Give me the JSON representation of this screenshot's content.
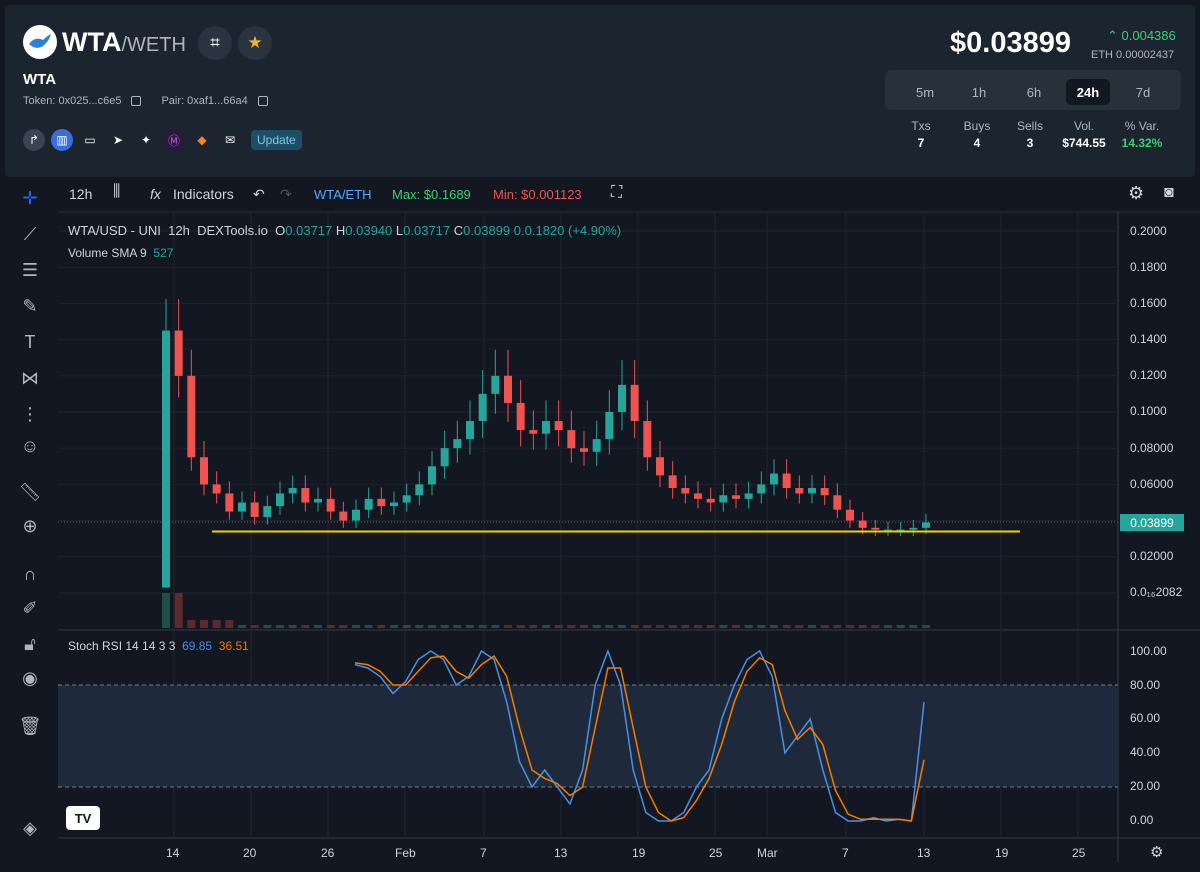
{
  "header": {
    "base": "WTA",
    "quote": "/WETH",
    "token_name": "WTA",
    "token_label": "Token: 0x025...c6e5",
    "pair_label": "Pair: 0xaf1...66a4",
    "update_label": "Update",
    "price": "$0.03899",
    "change": "0.004386",
    "eth_price": "ETH 0.00002437",
    "timeframes": [
      "5m",
      "1h",
      "6h",
      "24h",
      "7d"
    ],
    "active_timeframe": "24h",
    "stats": [
      {
        "label": "Txs",
        "value": "7"
      },
      {
        "label": "Buys",
        "value": "4"
      },
      {
        "label": "Sells",
        "value": "3"
      },
      {
        "label": "Vol.",
        "value": "$744.55"
      },
      {
        "label": "% Var.",
        "value": "14.32%"
      }
    ]
  },
  "toolbar": {
    "interval": "12h",
    "indicators": "Indicators",
    "pair": "WTA/ETH",
    "max": "Max: $0.1689",
    "min": "Min: $0.001123"
  },
  "legend": {
    "symbol": "WTA/USD - UNI",
    "interval": "12h",
    "source": "DEXTools.io",
    "o_label": "O",
    "o": "0.03717",
    "h_label": "H",
    "h": "0.03940",
    "l_label": "L",
    "l": "0.03717",
    "c_label": "C",
    "c": "0.03899",
    "change": "0.0.1820 (+4.90%)",
    "volume_label": "Volume SMA 9",
    "volume": "527",
    "stoch_label": "Stoch RSI 14 14 3 3",
    "stoch_k": "69.85",
    "stoch_d": "36.51"
  },
  "chart_data": {
    "type": "candlestick",
    "price_axis": [
      "0.2000",
      "0.1800",
      "0.1600",
      "0.1400",
      "0.1200",
      "0.1000",
      "0.08000",
      "0.06000",
      "0.04000",
      "0.02000",
      "0.0₁₆2082"
    ],
    "price_ylim": [
      0,
      0.2
    ],
    "current_price": "0.03899",
    "support_line": 0.034,
    "rsi_axis": [
      "100.00",
      "80.00",
      "60.00",
      "40.00",
      "20.00",
      "0.00"
    ],
    "x_labels": [
      "14",
      "20",
      "26",
      "Feb",
      "7",
      "13",
      "19",
      "25",
      "Mar",
      "7",
      "13",
      "19",
      "25"
    ],
    "close_approx": [
      0.145,
      0.12,
      0.075,
      0.06,
      0.055,
      0.045,
      0.05,
      0.042,
      0.048,
      0.055,
      0.058,
      0.05,
      0.052,
      0.045,
      0.04,
      0.046,
      0.052,
      0.048,
      0.05,
      0.054,
      0.06,
      0.07,
      0.08,
      0.085,
      0.095,
      0.11,
      0.12,
      0.105,
      0.09,
      0.088,
      0.095,
      0.09,
      0.08,
      0.078,
      0.085,
      0.1,
      0.115,
      0.095,
      0.075,
      0.065,
      0.058,
      0.055,
      0.052,
      0.05,
      0.054,
      0.052,
      0.055,
      0.06,
      0.066,
      0.058,
      0.055,
      0.058,
      0.054,
      0.046,
      0.04,
      0.036,
      0.035,
      0.035,
      0.035,
      0.036,
      0.039
    ],
    "stoch_k": [
      92,
      90,
      85,
      75,
      82,
      95,
      100,
      95,
      80,
      85,
      100,
      95,
      70,
      35,
      20,
      30,
      20,
      10,
      30,
      80,
      100,
      80,
      30,
      5,
      0,
      0,
      5,
      20,
      30,
      60,
      80,
      95,
      100,
      85,
      40,
      50,
      60,
      30,
      5,
      0,
      0,
      2,
      0,
      1,
      0,
      70
    ],
    "stoch_d": [
      93,
      92,
      88,
      80,
      80,
      88,
      96,
      97,
      88,
      84,
      92,
      97,
      85,
      55,
      30,
      25,
      22,
      15,
      20,
      55,
      90,
      90,
      55,
      20,
      5,
      0,
      2,
      12,
      25,
      45,
      70,
      88,
      96,
      92,
      65,
      48,
      55,
      45,
      18,
      4,
      1,
      1,
      1,
      1,
      0,
      36
    ]
  }
}
